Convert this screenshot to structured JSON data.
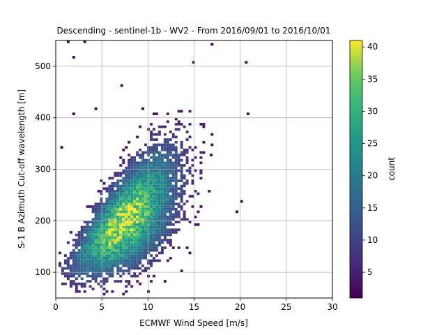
{
  "chart_data": {
    "type": "heatmap",
    "title": "Descending - sentinel-1b - WV2 - From 2016/09/01 to 2016/10/01",
    "xlabel": "ECMWF Wind Speed [m/s]",
    "ylabel": "S-1 B Azimuth Cut-off wavelength [m]",
    "xlim": [
      0,
      30
    ],
    "ylim": [
      50,
      550
    ],
    "x_ticks": [
      "0",
      "5",
      "10",
      "15",
      "20",
      "25",
      "30"
    ],
    "y_ticks": [
      "100",
      "200",
      "300",
      "400",
      "500"
    ],
    "grid": true,
    "colorbar": {
      "label": "count",
      "colormap": "viridis",
      "range": [
        1,
        41
      ],
      "ticks": [
        "5",
        "10",
        "15",
        "20",
        "25",
        "30",
        "35",
        "40"
      ]
    },
    "bin_size": {
      "x": 0.3,
      "y": 5
    },
    "distribution": {
      "description_points": [
        {
          "x": 7.5,
          "y": 195,
          "count": 41
        },
        {
          "x": 6.5,
          "y": 185,
          "count": 35
        },
        {
          "x": 8.5,
          "y": 205,
          "count": 30
        },
        {
          "x": 10.0,
          "y": 230,
          "count": 18
        },
        {
          "x": 4.0,
          "y": 150,
          "count": 12
        },
        {
          "x": 13.0,
          "y": 280,
          "count": 6
        },
        {
          "x": 17.0,
          "y": 350,
          "count": 2
        }
      ],
      "center_slope": 14,
      "center_intercept": 92
    }
  }
}
